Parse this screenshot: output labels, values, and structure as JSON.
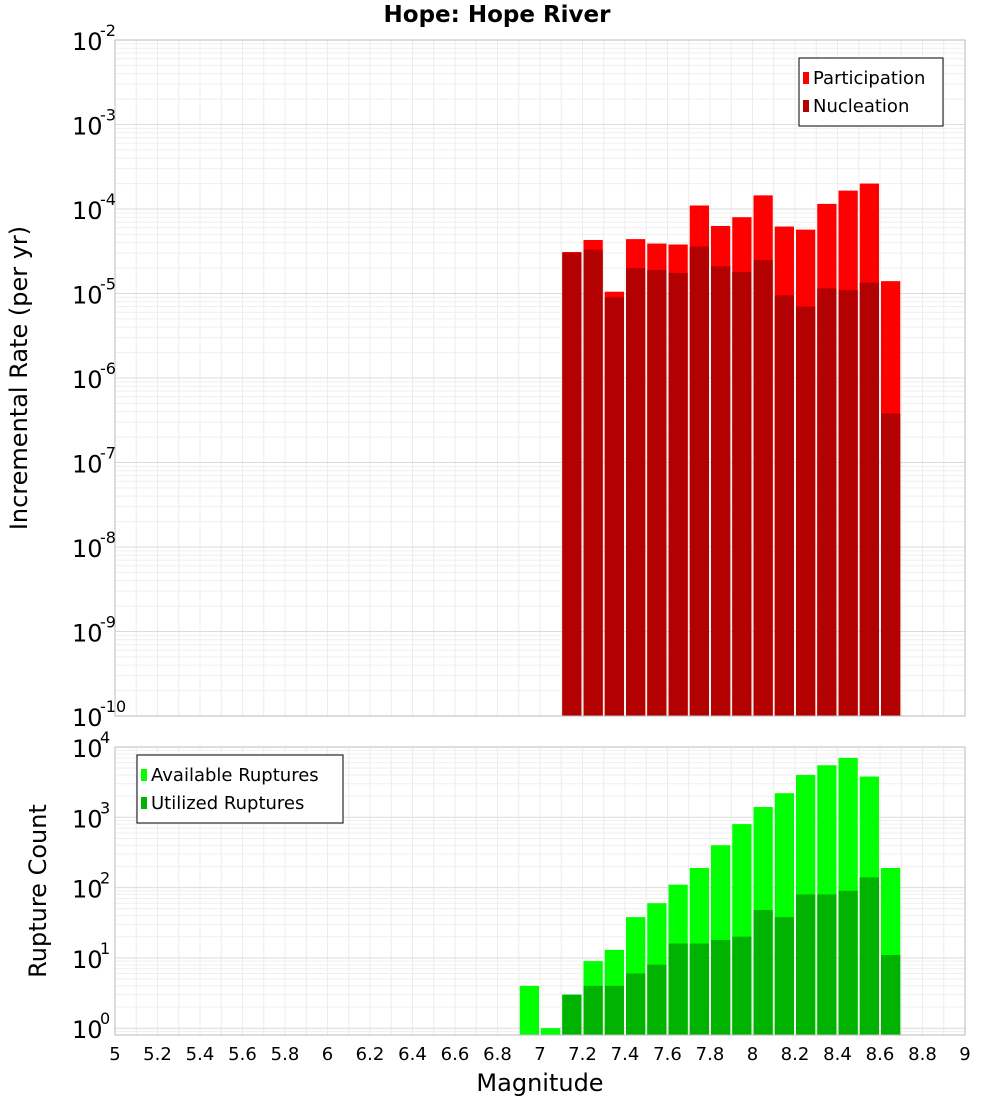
{
  "chart_data": [
    {
      "type": "bar",
      "title": "Hope: Hope River",
      "xlabel": "",
      "ylabel": "Incremental Rate (per yr)",
      "yscale": "log",
      "ylim": [
        1e-10,
        0.01
      ],
      "xlim": [
        5,
        9
      ],
      "legend_position": "top-right",
      "grid": true,
      "x": [
        7.15,
        7.25,
        7.35,
        7.45,
        7.55,
        7.65,
        7.75,
        7.85,
        7.95,
        8.05,
        8.15,
        8.25,
        8.35,
        8.45,
        8.55,
        8.65
      ],
      "series": [
        {
          "name": "Participation",
          "color": "#ff0000",
          "values": [
            3.1e-05,
            4.3e-05,
            1.05e-05,
            4.4e-05,
            3.9e-05,
            3.8e-05,
            0.00011,
            6.3e-05,
            8e-05,
            0.000145,
            6.2e-05,
            5.7e-05,
            0.000115,
            0.000165,
            0.0002,
            1.4e-05
          ]
        },
        {
          "name": "Nucleation",
          "color": "#b30000",
          "values": [
            3e-05,
            3.3e-05,
            9e-06,
            2e-05,
            1.9e-05,
            1.75e-05,
            3.6e-05,
            2.1e-05,
            1.8e-05,
            2.5e-05,
            9.5e-06,
            7e-06,
            1.15e-05,
            1.1e-05,
            1.35e-05,
            3.8e-07
          ]
        }
      ]
    },
    {
      "type": "bar",
      "title": "",
      "xlabel": "Magnitude",
      "ylabel": "Rupture Count",
      "yscale": "log",
      "ylim": [
        0.8,
        10000
      ],
      "xlim": [
        5,
        9
      ],
      "legend_position": "top-left",
      "grid": true,
      "x": [
        6.95,
        7.05,
        7.15,
        7.25,
        7.35,
        7.45,
        7.55,
        7.65,
        7.75,
        7.85,
        7.95,
        8.05,
        8.15,
        8.25,
        8.35,
        8.45,
        8.55,
        8.65
      ],
      "series": [
        {
          "name": "Available Ruptures",
          "color": "#00ff00",
          "values": [
            4,
            1,
            3,
            9,
            13,
            38,
            60,
            110,
            190,
            400,
            800,
            1400,
            2200,
            4000,
            5500,
            7000,
            3800,
            190
          ]
        },
        {
          "name": "Utilized Ruptures",
          "color": "#00b300",
          "values": [
            0,
            0,
            3,
            4,
            4,
            6,
            8,
            16,
            16,
            18,
            20,
            48,
            38,
            80,
            80,
            90,
            140,
            11
          ]
        }
      ]
    }
  ],
  "x_ticks": [
    "5",
    "5.2",
    "5.4",
    "5.6",
    "5.8",
    "6",
    "6.2",
    "6.4",
    "6.6",
    "6.8",
    "7",
    "7.2",
    "7.4",
    "7.6",
    "7.8",
    "8",
    "8.2",
    "8.4",
    "8.6",
    "8.8",
    "9"
  ],
  "top_yticks": [
    {
      "base": "10",
      "exp": "-2",
      "value": 0.01
    },
    {
      "base": "10",
      "exp": "-3",
      "value": 0.001
    },
    {
      "base": "10",
      "exp": "-4",
      "value": 0.0001
    },
    {
      "base": "10",
      "exp": "-5",
      "value": 1e-05
    },
    {
      "base": "10",
      "exp": "-6",
      "value": 1e-06
    },
    {
      "base": "10",
      "exp": "-7",
      "value": 1e-07
    },
    {
      "base": "10",
      "exp": "-8",
      "value": 1e-08
    },
    {
      "base": "10",
      "exp": "-9",
      "value": 1e-09
    },
    {
      "base": "10",
      "exp": "-10",
      "value": 1e-10
    }
  ],
  "bottom_yticks": [
    {
      "base": "10",
      "exp": "4",
      "value": 10000
    },
    {
      "base": "10",
      "exp": "3",
      "value": 1000
    },
    {
      "base": "10",
      "exp": "2",
      "value": 100
    },
    {
      "base": "10",
      "exp": "1",
      "value": 10
    },
    {
      "base": "10",
      "exp": "0",
      "value": 1
    }
  ]
}
